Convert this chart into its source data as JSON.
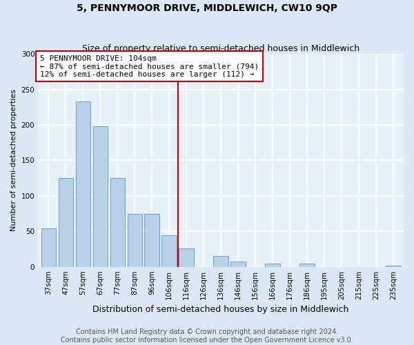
{
  "title": "5, PENNYMOOR DRIVE, MIDDLEWICH, CW10 9QP",
  "subtitle": "Size of property relative to semi-detached houses in Middlewich",
  "xlabel": "Distribution of semi-detached houses by size in Middlewich",
  "ylabel": "Number of semi-detached properties",
  "categories": [
    "37sqm",
    "47sqm",
    "57sqm",
    "67sqm",
    "77sqm",
    "87sqm",
    "96sqm",
    "106sqm",
    "116sqm",
    "126sqm",
    "136sqm",
    "146sqm",
    "156sqm",
    "166sqm",
    "176sqm",
    "186sqm",
    "195sqm",
    "205sqm",
    "215sqm",
    "225sqm",
    "235sqm"
  ],
  "values": [
    54,
    125,
    233,
    198,
    125,
    75,
    75,
    44,
    26,
    0,
    15,
    7,
    0,
    5,
    0,
    5,
    0,
    0,
    0,
    0,
    2
  ],
  "bar_color": "#b8d0e8",
  "bar_edge_color": "#6aa0c8",
  "vline_color": "#cc0000",
  "annotation_title": "5 PENNYMOOR DRIVE: 104sqm",
  "annotation_line1": "← 87% of semi-detached houses are smaller (794)",
  "annotation_line2": "12% of semi-detached houses are larger (112) →",
  "annotation_box_color": "#cc0000",
  "annotation_bg": "#ffffff",
  "ylim": [
    0,
    300
  ],
  "yticks": [
    0,
    50,
    100,
    150,
    200,
    250,
    300
  ],
  "footnote": "Contains HM Land Registry data © Crown copyright and database right 2024.\nContains public sector information licensed under the Open Government Licence v3.0.",
  "bg_color": "#dce8f5",
  "plot_bg_color": "#e8f0f8",
  "grid_color": "#ffffff",
  "title_fontsize": 10,
  "subtitle_fontsize": 9,
  "xlabel_fontsize": 9,
  "ylabel_fontsize": 8,
  "tick_fontsize": 7.5,
  "annotation_fontsize": 8,
  "footnote_fontsize": 7
}
